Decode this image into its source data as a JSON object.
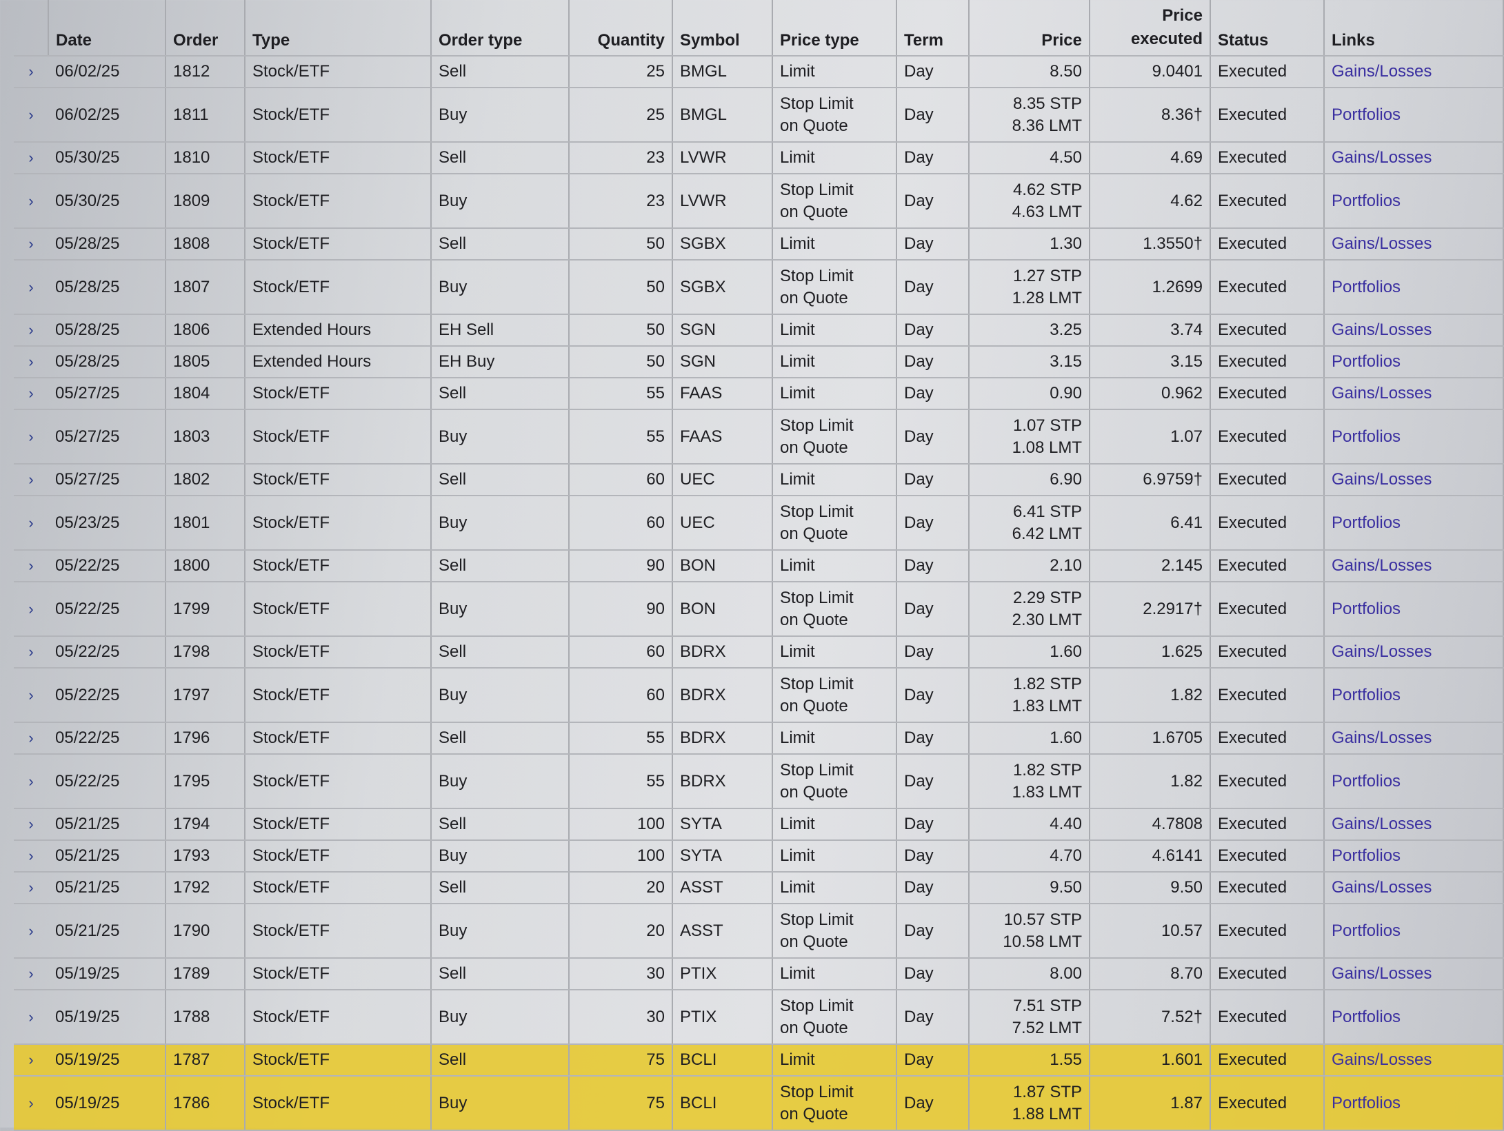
{
  "columns": [
    "",
    "Date",
    "Order",
    "Type",
    "Order type",
    "Quantity",
    "Symbol",
    "Price type",
    "Term",
    "Price",
    "Price executed",
    "Status",
    "Links"
  ],
  "expander_icon": "chevron-right-icon",
  "highlight_color": "#e8c830",
  "link_color": "#3a2fa0",
  "rows": [
    {
      "date": "06/02/25",
      "order": "1812",
      "type": "Stock/ETF",
      "order_type": "Sell",
      "quantity": "25",
      "symbol": "BMGL",
      "price_type": [
        "Limit"
      ],
      "term": "Day",
      "price": [
        "8.50"
      ],
      "price_executed": "9.0401",
      "status": "Executed",
      "link": "Gains/Losses"
    },
    {
      "date": "06/02/25",
      "order": "1811",
      "type": "Stock/ETF",
      "order_type": "Buy",
      "quantity": "25",
      "symbol": "BMGL",
      "price_type": [
        "Stop Limit",
        "on Quote"
      ],
      "term": "Day",
      "price": [
        "8.35 STP",
        "8.36 LMT"
      ],
      "price_executed": "8.36†",
      "status": "Executed",
      "link": "Portfolios"
    },
    {
      "date": "05/30/25",
      "order": "1810",
      "type": "Stock/ETF",
      "order_type": "Sell",
      "quantity": "23",
      "symbol": "LVWR",
      "price_type": [
        "Limit"
      ],
      "term": "Day",
      "price": [
        "4.50"
      ],
      "price_executed": "4.69",
      "status": "Executed",
      "link": "Gains/Losses"
    },
    {
      "date": "05/30/25",
      "order": "1809",
      "type": "Stock/ETF",
      "order_type": "Buy",
      "quantity": "23",
      "symbol": "LVWR",
      "price_type": [
        "Stop Limit",
        "on Quote"
      ],
      "term": "Day",
      "price": [
        "4.62 STP",
        "4.63 LMT"
      ],
      "price_executed": "4.62",
      "status": "Executed",
      "link": "Portfolios"
    },
    {
      "date": "05/28/25",
      "order": "1808",
      "type": "Stock/ETF",
      "order_type": "Sell",
      "quantity": "50",
      "symbol": "SGBX",
      "price_type": [
        "Limit"
      ],
      "term": "Day",
      "price": [
        "1.30"
      ],
      "price_executed": "1.3550†",
      "status": "Executed",
      "link": "Gains/Losses"
    },
    {
      "date": "05/28/25",
      "order": "1807",
      "type": "Stock/ETF",
      "order_type": "Buy",
      "quantity": "50",
      "symbol": "SGBX",
      "price_type": [
        "Stop Limit",
        "on Quote"
      ],
      "term": "Day",
      "price": [
        "1.27 STP",
        "1.28 LMT"
      ],
      "price_executed": "1.2699",
      "status": "Executed",
      "link": "Portfolios"
    },
    {
      "date": "05/28/25",
      "order": "1806",
      "type": "Extended Hours",
      "order_type": "EH Sell",
      "quantity": "50",
      "symbol": "SGN",
      "price_type": [
        "Limit"
      ],
      "term": "Day",
      "price": [
        "3.25"
      ],
      "price_executed": "3.74",
      "status": "Executed",
      "link": "Gains/Losses"
    },
    {
      "date": "05/28/25",
      "order": "1805",
      "type": "Extended Hours",
      "order_type": "EH Buy",
      "quantity": "50",
      "symbol": "SGN",
      "price_type": [
        "Limit"
      ],
      "term": "Day",
      "price": [
        "3.15"
      ],
      "price_executed": "3.15",
      "status": "Executed",
      "link": "Portfolios"
    },
    {
      "date": "05/27/25",
      "order": "1804",
      "type": "Stock/ETF",
      "order_type": "Sell",
      "quantity": "55",
      "symbol": "FAAS",
      "price_type": [
        "Limit"
      ],
      "term": "Day",
      "price": [
        "0.90"
      ],
      "price_executed": "0.962",
      "status": "Executed",
      "link": "Gains/Losses"
    },
    {
      "date": "05/27/25",
      "order": "1803",
      "type": "Stock/ETF",
      "order_type": "Buy",
      "quantity": "55",
      "symbol": "FAAS",
      "price_type": [
        "Stop Limit",
        "on Quote"
      ],
      "term": "Day",
      "price": [
        "1.07 STP",
        "1.08 LMT"
      ],
      "price_executed": "1.07",
      "status": "Executed",
      "link": "Portfolios"
    },
    {
      "date": "05/27/25",
      "order": "1802",
      "type": "Stock/ETF",
      "order_type": "Sell",
      "quantity": "60",
      "symbol": "UEC",
      "price_type": [
        "Limit"
      ],
      "term": "Day",
      "price": [
        "6.90"
      ],
      "price_executed": "6.9759†",
      "status": "Executed",
      "link": "Gains/Losses"
    },
    {
      "date": "05/23/25",
      "order": "1801",
      "type": "Stock/ETF",
      "order_type": "Buy",
      "quantity": "60",
      "symbol": "UEC",
      "price_type": [
        "Stop Limit",
        "on Quote"
      ],
      "term": "Day",
      "price": [
        "6.41 STP",
        "6.42 LMT"
      ],
      "price_executed": "6.41",
      "status": "Executed",
      "link": "Portfolios"
    },
    {
      "date": "05/22/25",
      "order": "1800",
      "type": "Stock/ETF",
      "order_type": "Sell",
      "quantity": "90",
      "symbol": "BON",
      "price_type": [
        "Limit"
      ],
      "term": "Day",
      "price": [
        "2.10"
      ],
      "price_executed": "2.145",
      "status": "Executed",
      "link": "Gains/Losses"
    },
    {
      "date": "05/22/25",
      "order": "1799",
      "type": "Stock/ETF",
      "order_type": "Buy",
      "quantity": "90",
      "symbol": "BON",
      "price_type": [
        "Stop Limit",
        "on Quote"
      ],
      "term": "Day",
      "price": [
        "2.29 STP",
        "2.30 LMT"
      ],
      "price_executed": "2.2917†",
      "status": "Executed",
      "link": "Portfolios"
    },
    {
      "date": "05/22/25",
      "order": "1798",
      "type": "Stock/ETF",
      "order_type": "Sell",
      "quantity": "60",
      "symbol": "BDRX",
      "price_type": [
        "Limit"
      ],
      "term": "Day",
      "price": [
        "1.60"
      ],
      "price_executed": "1.625",
      "status": "Executed",
      "link": "Gains/Losses"
    },
    {
      "date": "05/22/25",
      "order": "1797",
      "type": "Stock/ETF",
      "order_type": "Buy",
      "quantity": "60",
      "symbol": "BDRX",
      "price_type": [
        "Stop Limit",
        "on Quote"
      ],
      "term": "Day",
      "price": [
        "1.82 STP",
        "1.83 LMT"
      ],
      "price_executed": "1.82",
      "status": "Executed",
      "link": "Portfolios"
    },
    {
      "date": "05/22/25",
      "order": "1796",
      "type": "Stock/ETF",
      "order_type": "Sell",
      "quantity": "55",
      "symbol": "BDRX",
      "price_type": [
        "Limit"
      ],
      "term": "Day",
      "price": [
        "1.60"
      ],
      "price_executed": "1.6705",
      "status": "Executed",
      "link": "Gains/Losses"
    },
    {
      "date": "05/22/25",
      "order": "1795",
      "type": "Stock/ETF",
      "order_type": "Buy",
      "quantity": "55",
      "symbol": "BDRX",
      "price_type": [
        "Stop Limit",
        "on Quote"
      ],
      "term": "Day",
      "price": [
        "1.82 STP",
        "1.83 LMT"
      ],
      "price_executed": "1.82",
      "status": "Executed",
      "link": "Portfolios"
    },
    {
      "date": "05/21/25",
      "order": "1794",
      "type": "Stock/ETF",
      "order_type": "Sell",
      "quantity": "100",
      "symbol": "SYTA",
      "price_type": [
        "Limit"
      ],
      "term": "Day",
      "price": [
        "4.40"
      ],
      "price_executed": "4.7808",
      "status": "Executed",
      "link": "Gains/Losses"
    },
    {
      "date": "05/21/25",
      "order": "1793",
      "type": "Stock/ETF",
      "order_type": "Buy",
      "quantity": "100",
      "symbol": "SYTA",
      "price_type": [
        "Limit"
      ],
      "term": "Day",
      "price": [
        "4.70"
      ],
      "price_executed": "4.6141",
      "status": "Executed",
      "link": "Portfolios"
    },
    {
      "date": "05/21/25",
      "order": "1792",
      "type": "Stock/ETF",
      "order_type": "Sell",
      "quantity": "20",
      "symbol": "ASST",
      "price_type": [
        "Limit"
      ],
      "term": "Day",
      "price": [
        "9.50"
      ],
      "price_executed": "9.50",
      "status": "Executed",
      "link": "Gains/Losses"
    },
    {
      "date": "05/21/25",
      "order": "1790",
      "type": "Stock/ETF",
      "order_type": "Buy",
      "quantity": "20",
      "symbol": "ASST",
      "price_type": [
        "Stop Limit",
        "on Quote"
      ],
      "term": "Day",
      "price": [
        "10.57 STP",
        "10.58 LMT"
      ],
      "price_executed": "10.57",
      "status": "Executed",
      "link": "Portfolios"
    },
    {
      "date": "05/19/25",
      "order": "1789",
      "type": "Stock/ETF",
      "order_type": "Sell",
      "quantity": "30",
      "symbol": "PTIX",
      "price_type": [
        "Limit"
      ],
      "term": "Day",
      "price": [
        "8.00"
      ],
      "price_executed": "8.70",
      "status": "Executed",
      "link": "Gains/Losses"
    },
    {
      "date": "05/19/25",
      "order": "1788",
      "type": "Stock/ETF",
      "order_type": "Buy",
      "quantity": "30",
      "symbol": "PTIX",
      "price_type": [
        "Stop Limit",
        "on Quote"
      ],
      "term": "Day",
      "price": [
        "7.51 STP",
        "7.52 LMT"
      ],
      "price_executed": "7.52†",
      "status": "Executed",
      "link": "Portfolios"
    },
    {
      "date": "05/19/25",
      "order": "1787",
      "type": "Stock/ETF",
      "order_type": "Sell",
      "quantity": "75",
      "symbol": "BCLI",
      "price_type": [
        "Limit"
      ],
      "term": "Day",
      "price": [
        "1.55"
      ],
      "price_executed": "1.601",
      "status": "Executed",
      "link": "Gains/Losses",
      "highlighted": true
    },
    {
      "date": "05/19/25",
      "order": "1786",
      "type": "Stock/ETF",
      "order_type": "Buy",
      "quantity": "75",
      "symbol": "BCLI",
      "price_type": [
        "Stop Limit",
        "on Quote"
      ],
      "term": "Day",
      "price": [
        "1.87 STP",
        "1.88 LMT"
      ],
      "price_executed": "1.87",
      "status": "Executed",
      "link": "Portfolios",
      "highlighted": true
    }
  ]
}
